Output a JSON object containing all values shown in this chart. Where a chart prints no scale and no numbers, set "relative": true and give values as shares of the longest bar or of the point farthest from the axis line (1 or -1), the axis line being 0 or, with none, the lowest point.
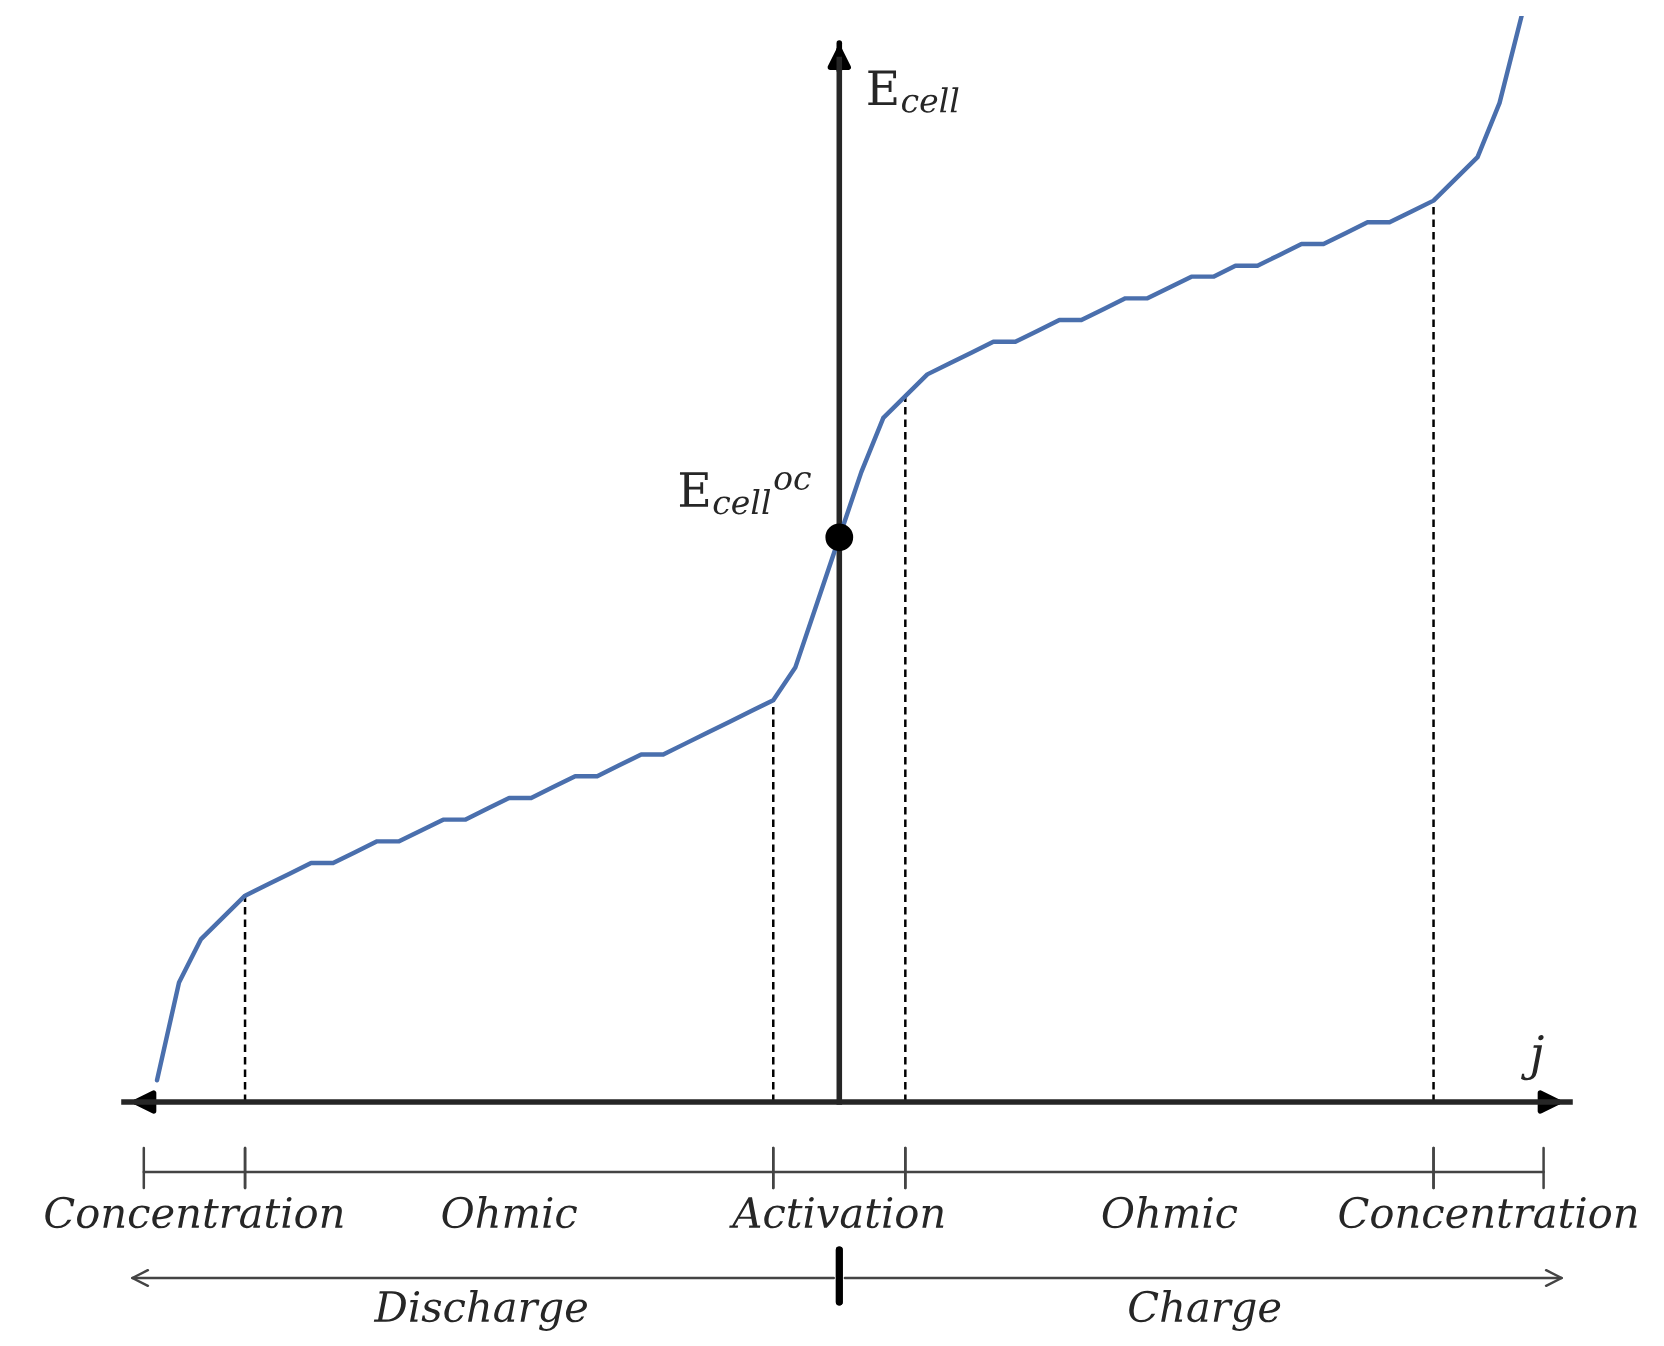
{
  "chart_data": {
    "type": "line",
    "relative": true,
    "xlabel": "j",
    "ylabel": "E$_{cell}$",
    "categories": [
      null,
      null,
      null,
      null,
      null,
      null,
      null,
      null,
      null,
      null,
      null,
      null,
      null,
      null,
      null,
      null,
      null,
      null,
      null,
      null,
      null,
      null,
      null,
      null,
      null,
      null,
      null,
      null,
      null,
      null,
      null,
      null,
      null,
      null,
      null,
      null,
      null,
      null,
      null,
      null,
      null,
      null,
      null,
      null,
      null,
      null,
      null,
      null,
      null,
      null,
      null,
      null,
      null,
      null,
      null,
      null,
      null,
      null,
      null,
      null,
      null,
      null,
      null
    ],
    "series": [
      {
        "color": "#4a6fad",
        "values": [
          0.02,
          0.11,
          0.15,
          0.17,
          0.19,
          0.2,
          0.21,
          0.22,
          0.22,
          0.23,
          0.24,
          0.24,
          0.25,
          0.26,
          0.26,
          0.27,
          0.28,
          0.28,
          0.29,
          0.3,
          0.3,
          0.31,
          0.32,
          0.32,
          0.33,
          0.34,
          0.35,
          0.36,
          0.37,
          0.4,
          0.46,
          0.52,
          0.58,
          0.63,
          0.65,
          0.67,
          0.68,
          0.69,
          0.7,
          0.7,
          0.71,
          0.72,
          0.72,
          0.73,
          0.74,
          0.74,
          0.75,
          0.76,
          0.76,
          0.77,
          0.77,
          0.78,
          0.79,
          0.79,
          0.8,
          0.81,
          0.81,
          0.82,
          0.83,
          0.85,
          0.87,
          0.92,
          1.0
        ]
      }
    ],
    "annotations": [
      "E$_{cell}$$^{oc}$",
      "Concentration",
      "Ohmic",
      "Activation",
      "Ohmic",
      "Concentration",
      "Discharge",
      "Charge"
    ]
  }
}
